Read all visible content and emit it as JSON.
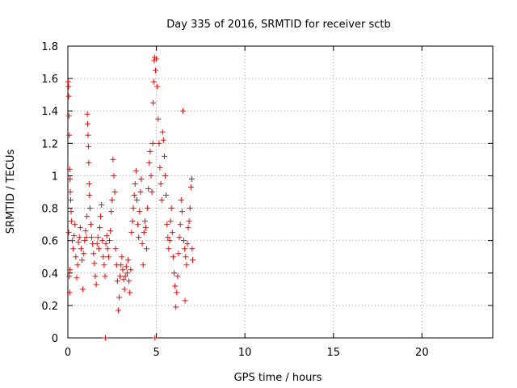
{
  "chart_data": {
    "type": "scatter",
    "title": "Day 335 of 2016, SRMTID for receiver sctb",
    "xlabel": "GPS time / hours",
    "ylabel": "SRMTID / TECUs",
    "xlim": [
      0,
      24
    ],
    "ylim": [
      0,
      1.8
    ],
    "xticks": [
      0,
      5,
      10,
      15,
      20
    ],
    "xtick_labels": [
      "0",
      "5",
      "10",
      "15",
      "20"
    ],
    "yticks": [
      0,
      0.2,
      0.4,
      0.6,
      0.8,
      1,
      1.2,
      1.4,
      1.6,
      1.8
    ],
    "ytick_labels": [
      "0",
      "0.2",
      "0.4",
      "0.6",
      "0.8",
      "1",
      "1.2",
      "1.4",
      "1.6",
      "1.8"
    ],
    "grid": true,
    "marker": "plus",
    "series": [
      {
        "name": "sctb",
        "color": "#ff0000",
        "points": [
          [
            0.02,
            1.58
          ],
          [
            0.04,
            1.55
          ],
          [
            0.05,
            1.49
          ],
          [
            0.06,
            1.37
          ],
          [
            0.08,
            1.25
          ],
          [
            0.1,
            1.04
          ],
          [
            0.12,
            0.98
          ],
          [
            0.14,
            0.9
          ],
          [
            0.16,
            0.85
          ],
          [
            0.18,
            0.78
          ],
          [
            0.2,
            0.72
          ],
          [
            0.05,
            0.65
          ],
          [
            0.08,
            0.38
          ],
          [
            0.1,
            0.28
          ],
          [
            0.12,
            0.42
          ],
          [
            0.25,
            0.6
          ],
          [
            0.3,
            0.55
          ],
          [
            0.35,
            0.63
          ],
          [
            0.4,
            0.7
          ],
          [
            0.45,
            0.5
          ],
          [
            0.5,
            0.37
          ],
          [
            0.55,
            0.45
          ],
          [
            0.6,
            0.59
          ],
          [
            0.65,
            0.62
          ],
          [
            0.7,
            0.68
          ],
          [
            0.75,
            0.55
          ],
          [
            0.8,
            0.48
          ],
          [
            0.85,
            0.3
          ],
          [
            0.9,
            0.52
          ],
          [
            0.95,
            0.6
          ],
          [
            1.0,
            0.66
          ],
          [
            1.05,
            0.62
          ],
          [
            1.08,
            0.75
          ],
          [
            1.1,
            1.38
          ],
          [
            1.12,
            1.32
          ],
          [
            1.14,
            1.25
          ],
          [
            1.16,
            1.18
          ],
          [
            1.18,
            1.08
          ],
          [
            1.2,
            0.95
          ],
          [
            1.22,
            0.88
          ],
          [
            1.25,
            0.8
          ],
          [
            1.3,
            0.7
          ],
          [
            1.35,
            0.62
          ],
          [
            1.4,
            0.58
          ],
          [
            1.45,
            0.52
          ],
          [
            1.5,
            0.46
          ],
          [
            1.55,
            0.38
          ],
          [
            1.6,
            0.33
          ],
          [
            1.65,
            0.58
          ],
          [
            1.7,
            0.62
          ],
          [
            1.75,
            0.55
          ],
          [
            1.8,
            0.68
          ],
          [
            1.85,
            0.75
          ],
          [
            1.9,
            0.82
          ],
          [
            1.95,
            0.6
          ],
          [
            2.0,
            0.5
          ],
          [
            2.05,
            0.45
          ],
          [
            2.1,
            0.38
          ],
          [
            2.12,
            0.0
          ],
          [
            2.15,
            0.58
          ],
          [
            2.2,
            0.63
          ],
          [
            2.25,
            0.55
          ],
          [
            2.3,
            0.5
          ],
          [
            2.35,
            0.6
          ],
          [
            2.4,
            0.66
          ],
          [
            2.45,
            0.78
          ],
          [
            2.5,
            0.85
          ],
          [
            2.55,
            1.1
          ],
          [
            2.6,
            1.0
          ],
          [
            2.65,
            0.9
          ],
          [
            2.7,
            0.55
          ],
          [
            2.75,
            0.45
          ],
          [
            2.8,
            0.35
          ],
          [
            2.85,
            0.17
          ],
          [
            2.9,
            0.25
          ],
          [
            2.95,
            0.38
          ],
          [
            3.0,
            0.45
          ],
          [
            3.05,
            0.5
          ],
          [
            3.1,
            0.42
          ],
          [
            3.15,
            0.36
          ],
          [
            3.2,
            0.3
          ],
          [
            3.25,
            0.38
          ],
          [
            3.3,
            0.44
          ],
          [
            3.35,
            0.4
          ],
          [
            3.4,
            0.48
          ],
          [
            3.45,
            0.35
          ],
          [
            3.5,
            0.28
          ],
          [
            3.55,
            0.42
          ],
          [
            3.6,
            0.65
          ],
          [
            3.65,
            0.72
          ],
          [
            3.7,
            0.8
          ],
          [
            3.75,
            0.88
          ],
          [
            3.8,
            0.95
          ],
          [
            3.85,
            1.03
          ],
          [
            3.9,
            0.85
          ],
          [
            3.95,
            0.7
          ],
          [
            4.0,
            0.62
          ],
          [
            4.05,
            0.78
          ],
          [
            4.1,
            0.9
          ],
          [
            4.15,
            0.98
          ],
          [
            4.2,
            0.58
          ],
          [
            4.25,
            0.45
          ],
          [
            4.3,
            0.65
          ],
          [
            4.35,
            0.72
          ],
          [
            4.4,
            0.68
          ],
          [
            4.45,
            0.55
          ],
          [
            4.5,
            0.8
          ],
          [
            4.55,
            0.92
          ],
          [
            4.6,
            1.08
          ],
          [
            4.65,
            1.15
          ],
          [
            4.7,
            1.0
          ],
          [
            4.75,
            0.9
          ],
          [
            4.8,
            1.2
          ],
          [
            4.82,
            1.45
          ],
          [
            4.85,
            1.58
          ],
          [
            4.88,
            1.71
          ],
          [
            4.9,
            1.73
          ],
          [
            4.92,
            0.0
          ],
          [
            4.95,
            1.65
          ],
          [
            5.0,
            1.72
          ],
          [
            5.05,
            1.55
          ],
          [
            5.1,
            1.35
          ],
          [
            5.15,
            1.2
          ],
          [
            5.2,
            1.05
          ],
          [
            5.25,
            0.95
          ],
          [
            5.3,
            0.85
          ],
          [
            5.35,
            1.27
          ],
          [
            5.4,
            1.22
          ],
          [
            5.45,
            1.12
          ],
          [
            5.5,
            1.0
          ],
          [
            5.55,
            0.88
          ],
          [
            5.6,
            0.7
          ],
          [
            5.65,
            0.62
          ],
          [
            5.7,
            0.55
          ],
          [
            5.75,
            0.6
          ],
          [
            5.8,
            0.72
          ],
          [
            5.85,
            0.8
          ],
          [
            5.9,
            0.65
          ],
          [
            5.95,
            0.5
          ],
          [
            6.0,
            0.4
          ],
          [
            6.05,
            0.32
          ],
          [
            6.1,
            0.19
          ],
          [
            6.15,
            0.28
          ],
          [
            6.2,
            0.38
          ],
          [
            6.25,
            0.52
          ],
          [
            6.3,
            0.62
          ],
          [
            6.35,
            0.7
          ],
          [
            6.4,
            0.85
          ],
          [
            6.45,
            0.78
          ],
          [
            6.5,
            1.4
          ],
          [
            6.55,
            0.6
          ],
          [
            6.6,
            0.55
          ],
          [
            6.62,
            0.23
          ],
          [
            6.65,
            0.5
          ],
          [
            6.7,
            0.45
          ],
          [
            6.75,
            0.58
          ],
          [
            6.8,
            0.68
          ],
          [
            6.85,
            0.72
          ],
          [
            6.9,
            0.8
          ],
          [
            6.95,
            0.93
          ],
          [
            7.0,
            0.98
          ],
          [
            7.02,
            0.55
          ],
          [
            7.05,
            0.48
          ]
        ]
      }
    ]
  }
}
